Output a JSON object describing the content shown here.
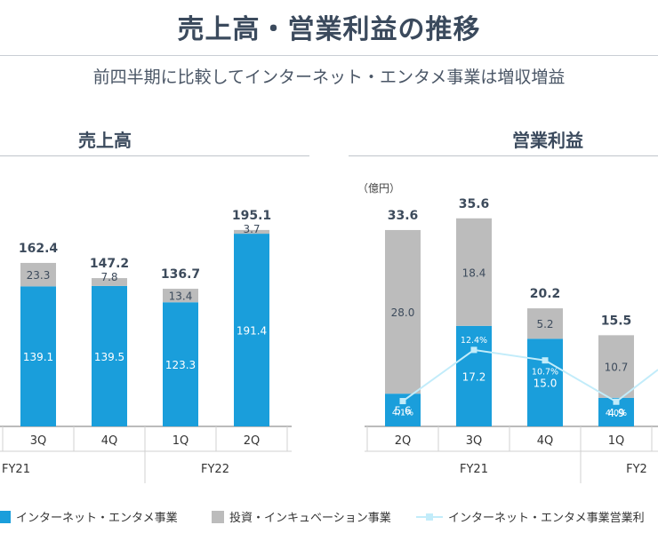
{
  "header": {
    "title": "売上高・営業利益の推移",
    "subtitle": "前四半期に比較してインターネット・エンタメ事業は増収増益"
  },
  "colors": {
    "internet": "#1a9edb",
    "investment": "#bcbcbc",
    "margin_line": "#c2ecfa",
    "text": "#3d4b5c"
  },
  "chart_data": [
    {
      "type": "bar",
      "stacked": true,
      "title": "売上高",
      "categories": [
        "3Q",
        "4Q",
        "1Q",
        "2Q"
      ],
      "fiscal_years": [
        {
          "label": "FY21",
          "span": 2
        },
        {
          "label": "FY22",
          "span": 2
        }
      ],
      "series": [
        {
          "name": "インターネット・エンタメ事業",
          "values": [
            139.1,
            139.5,
            123.3,
            191.4
          ]
        },
        {
          "name": "投資・インキュベーション事業",
          "values": [
            23.3,
            7.8,
            13.4,
            3.7
          ]
        }
      ],
      "totals": [
        162.4,
        147.2,
        136.7,
        195.1
      ],
      "ylim": [
        0,
        210
      ]
    },
    {
      "type": "bar",
      "stacked": true,
      "title": "営業利益",
      "unit": "（億円）",
      "categories": [
        "2Q",
        "3Q",
        "4Q",
        "1Q"
      ],
      "fiscal_years": [
        {
          "label": "FY21",
          "span": 3
        },
        {
          "label": "FY2",
          "span": 1
        }
      ],
      "series": [
        {
          "name": "インターネット・エンタメ事業",
          "values": [
            5.6,
            17.2,
            15.0,
            4.9
          ]
        },
        {
          "name": "投資・インキュベーション事業",
          "values": [
            28.0,
            18.4,
            5.2,
            10.7
          ]
        }
      ],
      "totals": [
        33.6,
        35.6,
        20.2,
        15.5
      ],
      "line_series": {
        "name": "インターネット・エンタメ事業営業利益率",
        "values": [
          4.1,
          12.4,
          10.7,
          4.0
        ],
        "labels": [
          "4.1%",
          "12.4%",
          "10.7%",
          "4.0%"
        ],
        "ylim": [
          0,
          36
        ]
      },
      "ylim": [
        0,
        38
      ]
    }
  ],
  "legend": [
    {
      "label": "インターネット・エンタメ事業"
    },
    {
      "label": "投資・インキュベーション事業"
    },
    {
      "label": "インターネット・エンタメ事業営業利"
    }
  ]
}
